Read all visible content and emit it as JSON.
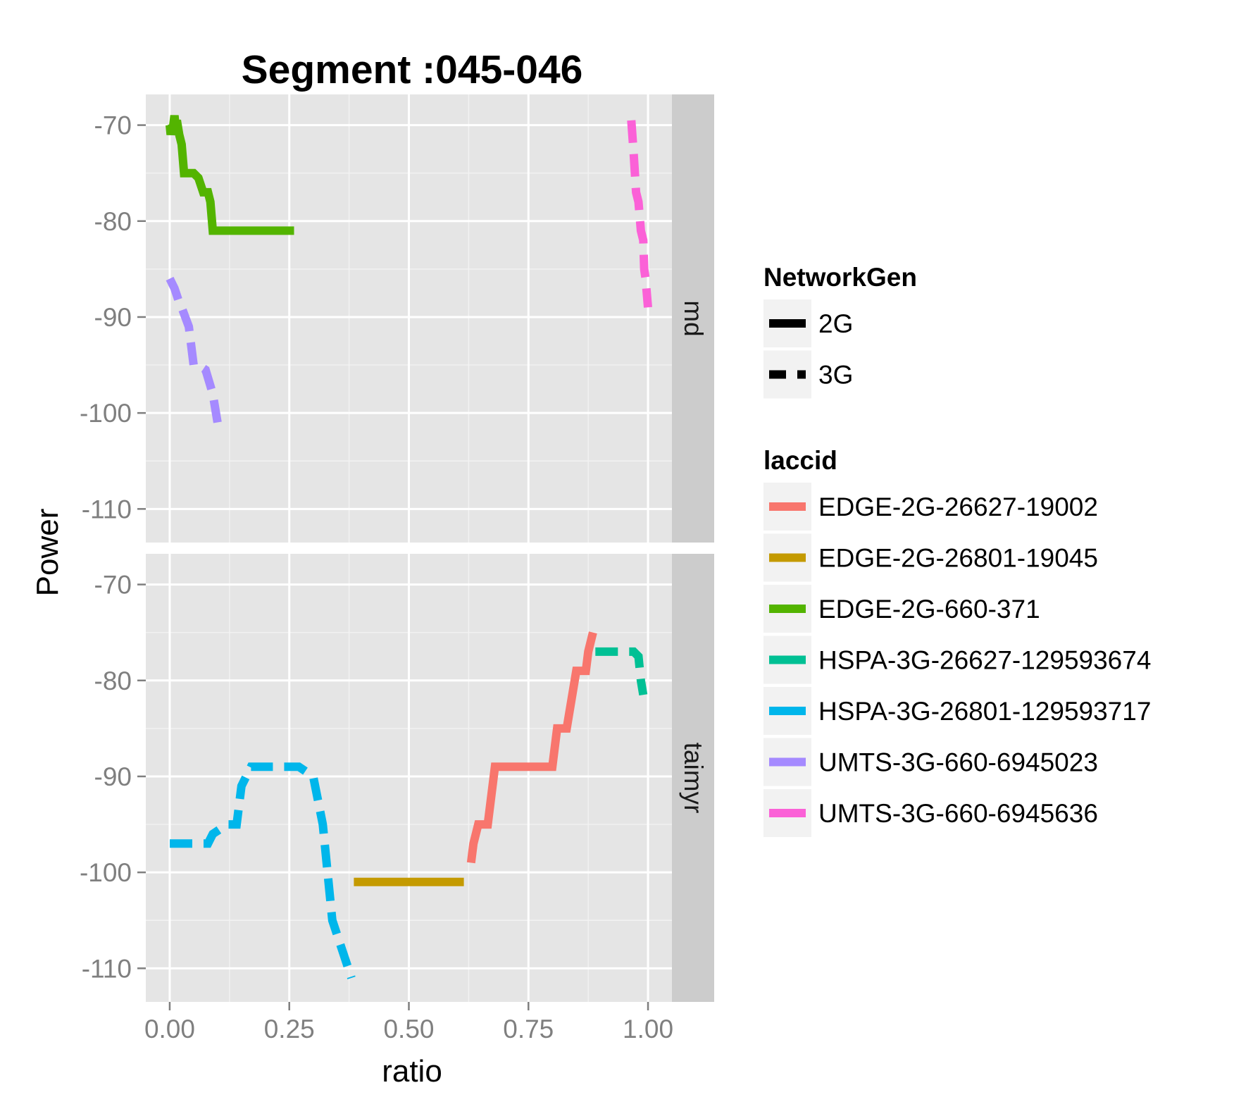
{
  "chart_data": {
    "type": "line",
    "title": "Segment :045-046",
    "xlabel": "ratio",
    "ylabel": "Power",
    "xlim": [
      -0.05,
      1.05
    ],
    "ylim": [
      -113.5,
      -66.8
    ],
    "x_ticks": [
      "0.00",
      "0.25",
      "0.50",
      "0.75",
      "1.00"
    ],
    "x_tick_values": [
      0,
      0.25,
      0.5,
      0.75,
      1.0
    ],
    "y_ticks": [
      "-70",
      "-80",
      "-90",
      "-100",
      "-110"
    ],
    "y_tick_values": [
      -70,
      -80,
      -90,
      -100,
      -110
    ],
    "grid": true,
    "legend_position": "right",
    "panels": [
      {
        "strip": "md",
        "series": [
          {
            "name": "EDGE-2G-660-371",
            "network": "2G",
            "x": [
              0,
              0.002,
              0.005,
              0.005,
              0.01,
              0.012,
              0.015,
              0.02,
              0.025,
              0.03,
              0.05,
              0.06,
              0.07,
              0.08,
              0.085,
              0.09,
              0.26
            ],
            "y": [
              -70,
              -71,
              -70,
              -71,
              -69,
              -70,
              -69.5,
              -71,
              -72,
              -75,
              -75,
              -75.5,
              -77,
              -77,
              -78,
              -81,
              -81
            ]
          },
          {
            "name": "UMTS-3G-660-6945023",
            "network": "3G",
            "x": [
              0,
              0.01,
              0.02,
              0.025,
              0.04,
              0.05,
              0.06,
              0.075,
              0.09,
              0.1,
              0.12
            ],
            "y": [
              -86,
              -87,
              -88.5,
              -89,
              -91,
              -95,
              -95,
              -95.5,
              -98,
              -101,
              -101.5
            ]
          },
          {
            "name": "UMTS-3G-660-6945636",
            "network": "3G",
            "x": [
              0.965,
              0.97,
              0.975,
              0.98,
              0.985,
              0.99,
              0.992,
              0.995,
              1.0
            ],
            "y": [
              -69.5,
              -73,
              -77,
              -78,
              -81,
              -82,
              -85,
              -86,
              -89
            ]
          }
        ]
      },
      {
        "strip": "taimyr",
        "series": [
          {
            "name": "HSPA-3G-26801-129593717",
            "network": "3G",
            "x": [
              0,
              0.08,
              0.09,
              0.12,
              0.14,
              0.15,
              0.17,
              0.27,
              0.3,
              0.32,
              0.34,
              0.36,
              0.38
            ],
            "y": [
              -97,
              -97,
              -96,
              -95,
              -95,
              -91,
              -89,
              -89,
              -90,
              -95,
              -105,
              -108,
              -111
            ]
          },
          {
            "name": "EDGE-2G-26801-19045",
            "network": "2G",
            "x": [
              0.385,
              0.615
            ],
            "y": [
              -101,
              -101
            ]
          },
          {
            "name": "EDGE-2G-26627-19002",
            "network": "2G",
            "x": [
              0.63,
              0.635,
              0.645,
              0.665,
              0.68,
              0.8,
              0.81,
              0.83,
              0.85,
              0.87,
              0.875,
              0.885
            ],
            "y": [
              -99,
              -97,
              -95,
              -95,
              -89,
              -89,
              -85,
              -85,
              -79,
              -79,
              -77,
              -75
            ]
          },
          {
            "name": "HSPA-3G-26627-129593674",
            "network": "3G",
            "x": [
              0.89,
              0.95,
              0.97,
              0.98,
              0.985,
              0.99
            ],
            "y": [
              -77,
              -77,
              -77,
              -77.5,
              -80,
              -81.5
            ]
          }
        ]
      }
    ],
    "legends": [
      {
        "title": "NetworkGen",
        "items": [
          {
            "label": "2G",
            "dash": false
          },
          {
            "label": "3G",
            "dash": true
          }
        ]
      },
      {
        "title": "laccid",
        "items": [
          {
            "label": "EDGE-2G-26627-19002",
            "color": "#F8766D"
          },
          {
            "label": "EDGE-2G-26801-19045",
            "color": "#C49A00"
          },
          {
            "label": "EDGE-2G-660-371",
            "color": "#53B400"
          },
          {
            "label": "HSPA-3G-26627-129593674",
            "color": "#00C094"
          },
          {
            "label": "HSPA-3G-26801-129593717",
            "color": "#00B6EB"
          },
          {
            "label": "UMTS-3G-660-6945023",
            "color": "#A58AFF"
          },
          {
            "label": "UMTS-3G-660-6945636",
            "color": "#FB61D7"
          }
        ]
      }
    ]
  }
}
